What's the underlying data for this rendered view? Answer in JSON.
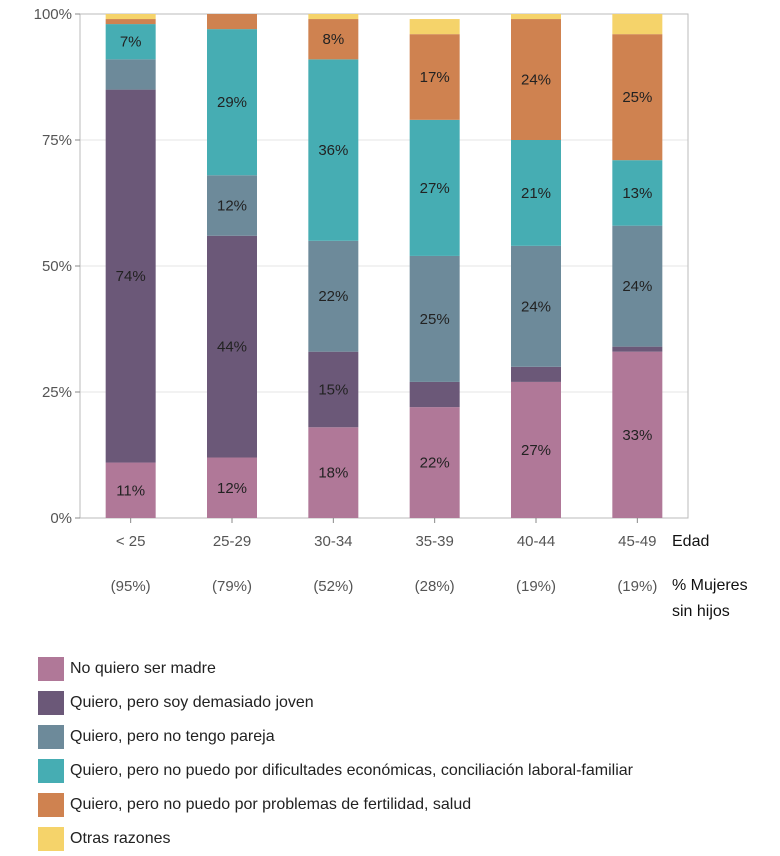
{
  "chart_data": {
    "type": "bar",
    "stacked": true,
    "categories": [
      "< 25",
      "25-29",
      "30-34",
      "35-39",
      "40-44",
      "45-49"
    ],
    "sub_labels": [
      "(95%)",
      "(79%)",
      "(52%)",
      "(28%)",
      "(19%)",
      "(19%)"
    ],
    "xlabel": "Edad",
    "sub_label_title": [
      "% Mujeres",
      "sin hijos"
    ],
    "ylim": [
      0,
      100
    ],
    "yticks": [
      "0%",
      "25%",
      "50%",
      "75%",
      "100%"
    ],
    "grid": true,
    "legend_position": "bottom",
    "series": [
      {
        "name": "No quiero ser madre",
        "color": "#b07898",
        "values": [
          11,
          12,
          18,
          22,
          27,
          33
        ],
        "labels": [
          "11%",
          "12%",
          "18%",
          "22%",
          "27%",
          "33%"
        ]
      },
      {
        "name": "Quiero, pero soy demasiado joven",
        "color": "#6b5878",
        "values": [
          74,
          44,
          15,
          5,
          3,
          1
        ],
        "labels": [
          "74%",
          "44%",
          "15%",
          "",
          "",
          ""
        ]
      },
      {
        "name": "Quiero, pero no tengo pareja",
        "color": "#6d8a9a",
        "values": [
          6,
          12,
          22,
          25,
          24,
          24
        ],
        "labels": [
          "",
          "12%",
          "22%",
          "25%",
          "24%",
          "24%"
        ]
      },
      {
        "name": "Quiero, pero no puedo por dificultades económicas, conciliación laboral-familiar",
        "color": "#46adb3",
        "values": [
          7,
          29,
          36,
          27,
          21,
          13
        ],
        "labels": [
          "7%",
          "29%",
          "36%",
          "27%",
          "21%",
          "13%"
        ]
      },
      {
        "name": "Quiero, pero no puedo por problemas de fertilidad, salud",
        "color": "#cf8250",
        "values": [
          1,
          3,
          8,
          17,
          24,
          25
        ],
        "labels": [
          "",
          "",
          "8%",
          "17%",
          "24%",
          "25%"
        ]
      },
      {
        "name": "Otras razones",
        "color": "#f5d36a",
        "values": [
          1,
          0,
          1,
          3,
          1,
          4
        ],
        "labels": [
          "",
          "",
          "",
          "",
          "",
          ""
        ]
      }
    ]
  }
}
